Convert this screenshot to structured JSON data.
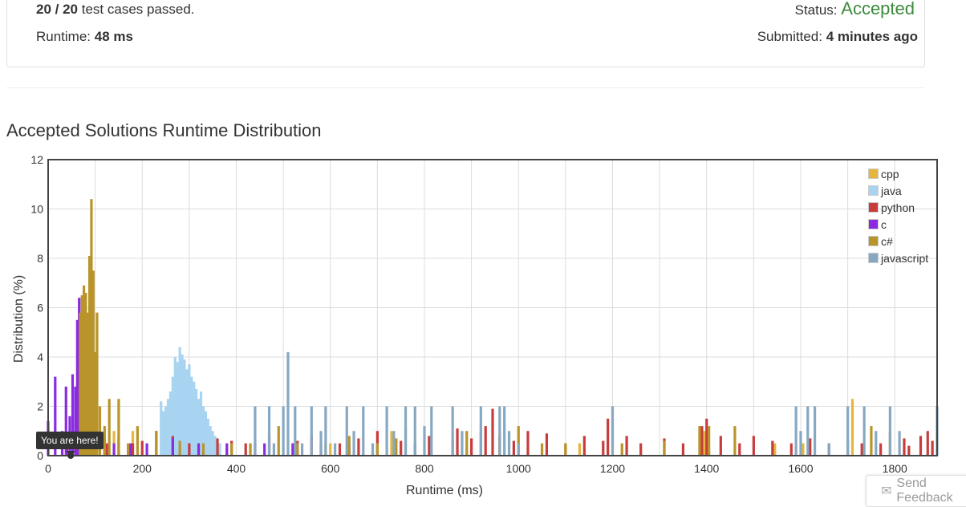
{
  "summary": {
    "cases_passed": "20 / 20",
    "cases_label": "test cases passed.",
    "status_label": "Status:",
    "status_value": "Accepted",
    "runtime_label": "Runtime:",
    "runtime_value": "48 ms",
    "submitted_label": "Submitted:",
    "submitted_value": "4 minutes ago"
  },
  "tooltip": "You are here!",
  "feedback": {
    "label": "Send Feedback",
    "icon": "envelope-icon"
  },
  "chart_data": {
    "type": "bar",
    "title": "Accepted Solutions Runtime Distribution",
    "xlabel": "Runtime (ms)",
    "ylabel": "Distribution (%)",
    "xlim": [
      0,
      1890
    ],
    "ylim": [
      0,
      12
    ],
    "xticks": [
      0,
      200,
      400,
      600,
      800,
      1000,
      1200,
      1400,
      1600,
      1800
    ],
    "yticks": [
      0,
      2,
      4,
      6,
      8,
      10,
      12
    ],
    "grid": true,
    "legend_position": "top-right",
    "marker_runtime": 48,
    "series": [
      {
        "name": "cpp",
        "color": "#e6b53d",
        "points": [
          [
            84,
            2.3
          ],
          [
            96,
            1.0
          ],
          [
            140,
            1.0
          ],
          [
            180,
            1.0
          ],
          [
            340,
            1.0
          ],
          [
            600,
            0.5
          ],
          [
            730,
            1.0
          ],
          [
            1130,
            0.5
          ],
          [
            1395,
            1.0
          ],
          [
            1545,
            0.5
          ],
          [
            1605,
            0.5
          ],
          [
            1710,
            2.3
          ]
        ]
      },
      {
        "name": "java",
        "color": "#a8d4f2",
        "points": [
          [
            240,
            2.2
          ],
          [
            245,
            1.8
          ],
          [
            250,
            2.0
          ],
          [
            255,
            2.3
          ],
          [
            260,
            2.6
          ],
          [
            265,
            3.2
          ],
          [
            270,
            4.0
          ],
          [
            275,
            3.8
          ],
          [
            280,
            4.4
          ],
          [
            285,
            4.1
          ],
          [
            290,
            3.9
          ],
          [
            295,
            3.5
          ],
          [
            300,
            3.7
          ],
          [
            305,
            3.2
          ],
          [
            310,
            3.0
          ],
          [
            315,
            2.7
          ],
          [
            320,
            2.3
          ],
          [
            325,
            2.6
          ],
          [
            330,
            2.0
          ],
          [
            335,
            1.8
          ],
          [
            340,
            1.5
          ],
          [
            345,
            1.2
          ],
          [
            350,
            1.0
          ],
          [
            355,
            0.8
          ],
          [
            365,
            0.5
          ],
          [
            380,
            0.4
          ]
        ]
      },
      {
        "name": "python",
        "color": "#c83c3c",
        "points": [
          [
            40,
            0.7
          ],
          [
            60,
            0.7
          ],
          [
            125,
            0.5
          ],
          [
            150,
            0.8
          ],
          [
            180,
            0.5
          ],
          [
            200,
            0.6
          ],
          [
            230,
            1.0
          ],
          [
            265,
            0.8
          ],
          [
            300,
            0.5
          ],
          [
            360,
            0.7
          ],
          [
            390,
            0.6
          ],
          [
            420,
            0.5
          ],
          [
            470,
            0.8
          ],
          [
            530,
            0.6
          ],
          [
            560,
            0.8
          ],
          [
            620,
            0.5
          ],
          [
            660,
            0.7
          ],
          [
            700,
            1.0
          ],
          [
            750,
            0.6
          ],
          [
            780,
            0.5
          ],
          [
            810,
            0.8
          ],
          [
            870,
            1.1
          ],
          [
            900,
            0.7
          ],
          [
            930,
            1.2
          ],
          [
            945,
            1.9
          ],
          [
            960,
            0.8
          ],
          [
            990,
            0.6
          ],
          [
            1020,
            1.0
          ],
          [
            1060,
            0.9
          ],
          [
            1100,
            0.5
          ],
          [
            1140,
            0.8
          ],
          [
            1180,
            0.6
          ],
          [
            1190,
            1.5
          ],
          [
            1230,
            0.8
          ],
          [
            1260,
            0.5
          ],
          [
            1310,
            0.7
          ],
          [
            1350,
            0.5
          ],
          [
            1390,
            1.2
          ],
          [
            1400,
            1.5
          ],
          [
            1430,
            0.8
          ],
          [
            1470,
            0.5
          ],
          [
            1500,
            0.8
          ],
          [
            1540,
            0.6
          ],
          [
            1580,
            0.5
          ],
          [
            1620,
            0.7
          ],
          [
            1660,
            0.5
          ],
          [
            1700,
            0.6
          ],
          [
            1730,
            0.5
          ],
          [
            1770,
            0.5
          ],
          [
            1820,
            0.7
          ],
          [
            1830,
            0.4
          ],
          [
            1855,
            0.8
          ],
          [
            1870,
            1.0
          ],
          [
            1880,
            0.6
          ]
        ]
      },
      {
        "name": "c",
        "color": "#8a2be2",
        "points": [
          [
            0,
            1.4
          ],
          [
            15,
            3.2
          ],
          [
            30,
            1.0
          ],
          [
            38,
            2.8
          ],
          [
            46,
            1.6
          ],
          [
            52,
            3.3
          ],
          [
            58,
            2.8
          ],
          [
            62,
            5.5
          ],
          [
            66,
            6.4
          ],
          [
            70,
            4.5
          ],
          [
            74,
            5.0
          ],
          [
            80,
            2.6
          ],
          [
            85,
            1.5
          ],
          [
            90,
            1.2
          ],
          [
            100,
            1.0
          ],
          [
            120,
            0.8
          ],
          [
            140,
            0.5
          ],
          [
            175,
            0.5
          ],
          [
            210,
            0.5
          ],
          [
            265,
            0.7
          ],
          [
            320,
            0.5
          ],
          [
            380,
            0.5
          ],
          [
            440,
            0.5
          ],
          [
            460,
            0.5
          ],
          [
            520,
            0.5
          ],
          [
            580,
            0.5
          ],
          [
            640,
            0.5
          ]
        ]
      },
      {
        "name": "c#",
        "color": "#b8942b",
        "points": [
          [
            68,
            5.8
          ],
          [
            72,
            6.5
          ],
          [
            76,
            6.9
          ],
          [
            80,
            6.6
          ],
          [
            84,
            5.8
          ],
          [
            88,
            8.1
          ],
          [
            92,
            10.4
          ],
          [
            96,
            7.5
          ],
          [
            100,
            4.2
          ],
          [
            104,
            5.8
          ],
          [
            110,
            2.0
          ],
          [
            120,
            1.2
          ],
          [
            130,
            2.3
          ],
          [
            150,
            2.3
          ],
          [
            170,
            0.5
          ],
          [
            190,
            1.2
          ],
          [
            230,
            1.0
          ],
          [
            280,
            0.6
          ],
          [
            330,
            0.5
          ],
          [
            390,
            0.5
          ],
          [
            430,
            0.5
          ],
          [
            490,
            1.2
          ],
          [
            530,
            0.5
          ],
          [
            590,
            0.5
          ],
          [
            640,
            0.8
          ],
          [
            700,
            0.5
          ],
          [
            740,
            0.7
          ],
          [
            760,
            1.2
          ],
          [
            860,
            0.6
          ],
          [
            890,
            1.0
          ],
          [
            920,
            1.0
          ],
          [
            960,
            0.8
          ],
          [
            1000,
            1.2
          ],
          [
            1050,
            0.5
          ],
          [
            1100,
            0.5
          ],
          [
            1220,
            0.5
          ],
          [
            1310,
            0.6
          ],
          [
            1385,
            1.2
          ],
          [
            1405,
            1.2
          ],
          [
            1460,
            1.2
          ],
          [
            1750,
            1.2
          ],
          [
            1790,
            1.0
          ]
        ]
      },
      {
        "name": "javascript",
        "color": "#86a9c3",
        "points": [
          [
            440,
            2.0
          ],
          [
            470,
            2.0
          ],
          [
            480,
            0.5
          ],
          [
            500,
            2.0
          ],
          [
            510,
            4.2
          ],
          [
            525,
            2.0
          ],
          [
            540,
            0.5
          ],
          [
            560,
            2.0
          ],
          [
            580,
            1.0
          ],
          [
            590,
            2.0
          ],
          [
            610,
            0.5
          ],
          [
            635,
            2.0
          ],
          [
            650,
            1.0
          ],
          [
            670,
            2.0
          ],
          [
            690,
            0.5
          ],
          [
            720,
            2.0
          ],
          [
            735,
            1.0
          ],
          [
            760,
            2.0
          ],
          [
            780,
            2.0
          ],
          [
            800,
            1.2
          ],
          [
            815,
            2.0
          ],
          [
            860,
            2.0
          ],
          [
            880,
            1.0
          ],
          [
            920,
            2.0
          ],
          [
            960,
            2.0
          ],
          [
            970,
            2.0
          ],
          [
            980,
            1.0
          ],
          [
            1000,
            0.5
          ],
          [
            1200,
            2.0
          ],
          [
            1590,
            2.0
          ],
          [
            1600,
            1.0
          ],
          [
            1615,
            2.0
          ],
          [
            1630,
            2.0
          ],
          [
            1660,
            0.5
          ],
          [
            1700,
            2.0
          ],
          [
            1735,
            2.0
          ],
          [
            1760,
            1.0
          ],
          [
            1790,
            2.0
          ],
          [
            1810,
            1.0
          ],
          [
            1890,
            2.0
          ]
        ]
      }
    ]
  }
}
